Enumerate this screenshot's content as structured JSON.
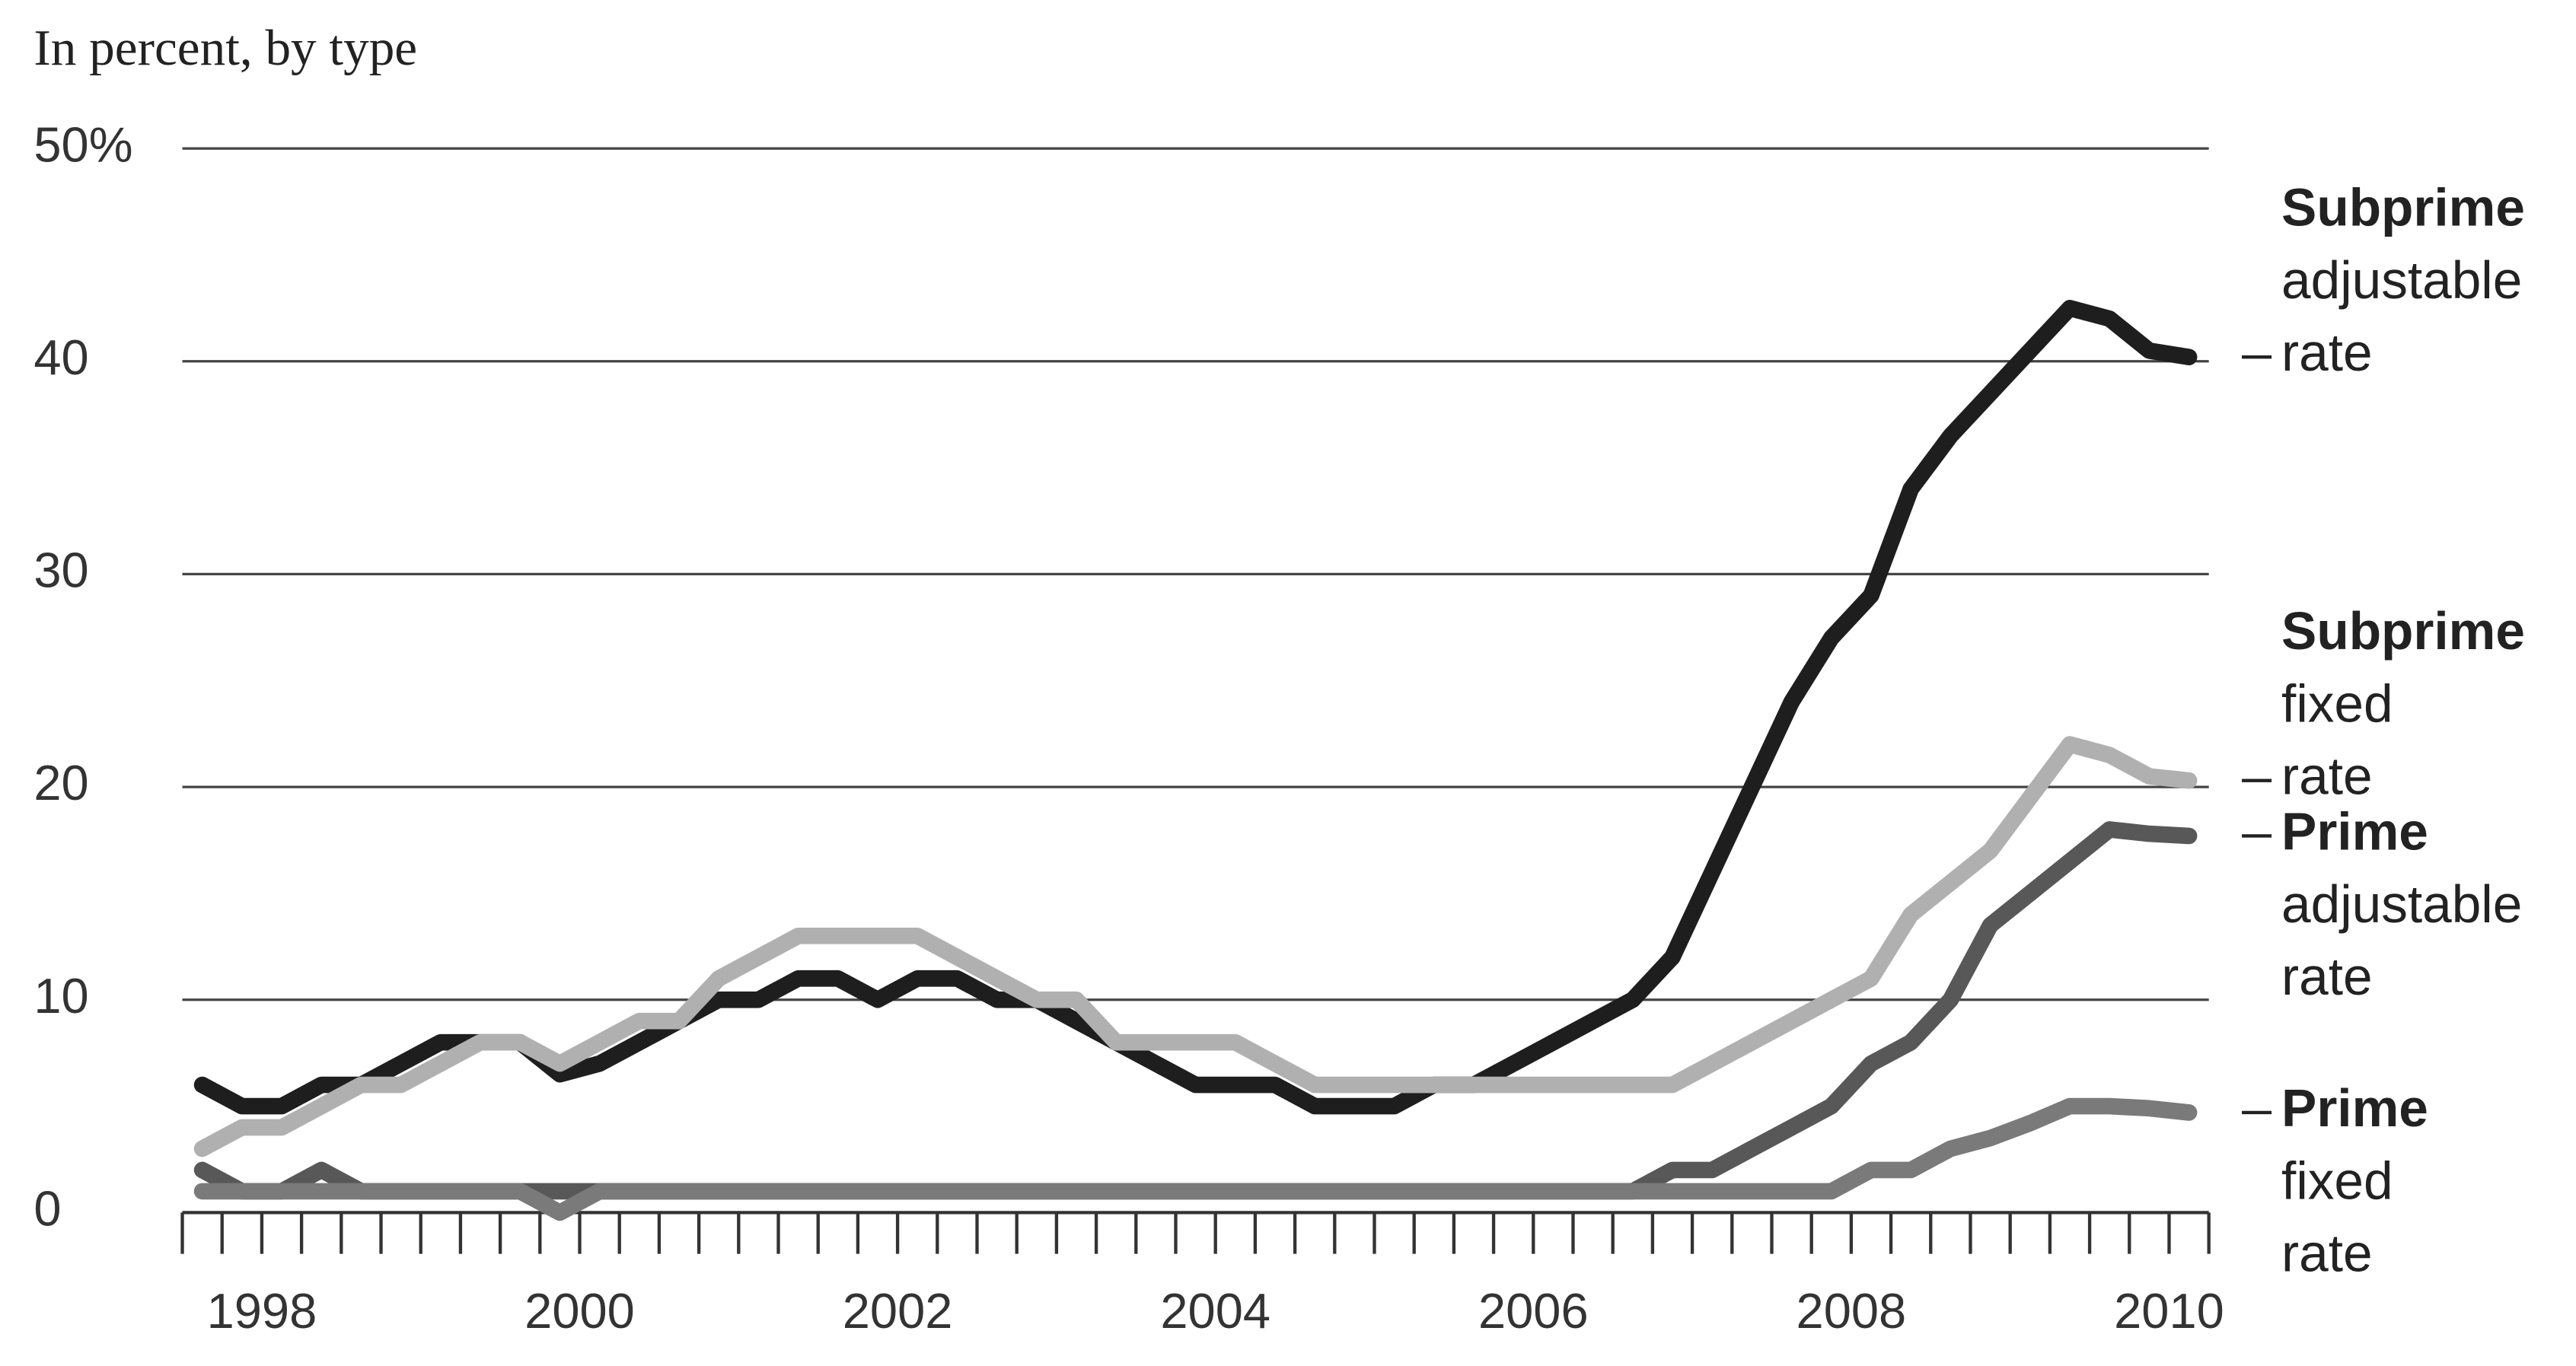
{
  "chart_data": {
    "type": "line",
    "subtitle": "In percent, by type",
    "xlim": [
      1998,
      2010.75
    ],
    "xticks": [
      {
        "value": 1998.5,
        "label": "1998"
      },
      {
        "value": 2000.5,
        "label": "2000"
      },
      {
        "value": 2002.5,
        "label": "2002"
      },
      {
        "value": 2004.5,
        "label": "2004"
      },
      {
        "value": 2006.5,
        "label": "2006"
      },
      {
        "value": 2008.5,
        "label": "2008"
      },
      {
        "value": 2010.5,
        "label": "2010"
      }
    ],
    "ylim": [
      0,
      50
    ],
    "yticks": [
      0,
      10,
      20,
      30,
      40,
      {
        "value": 50,
        "label": "50%"
      }
    ],
    "grid": true,
    "x": [
      1998.125,
      1998.375,
      1998.625,
      1998.875,
      1999.125,
      1999.375,
      1999.625,
      1999.875,
      2000.125,
      2000.375,
      2000.625,
      2000.875,
      2001.125,
      2001.375,
      2001.625,
      2001.875,
      2002.125,
      2002.375,
      2002.625,
      2002.875,
      2003.125,
      2003.375,
      2003.625,
      2003.875,
      2004.125,
      2004.375,
      2004.625,
      2004.875,
      2005.125,
      2005.375,
      2005.625,
      2005.875,
      2006.125,
      2006.375,
      2006.625,
      2006.875,
      2007.125,
      2007.375,
      2007.625,
      2007.875,
      2008.125,
      2008.375,
      2008.625,
      2008.875,
      2009.125,
      2009.375,
      2009.625,
      2009.875,
      2010.125,
      2010.375,
      2010.625
    ],
    "series": [
      {
        "name": "Subprime adjustable rate",
        "color": "#1e1e1e",
        "values": [
          6,
          5,
          5,
          6,
          6,
          7,
          8,
          8,
          8,
          6.5,
          7,
          8,
          9,
          10,
          10,
          11,
          11,
          10,
          11,
          11,
          10,
          10,
          9,
          8,
          7,
          6,
          6,
          6,
          5,
          5,
          5,
          6,
          6,
          7,
          8,
          9,
          10,
          12,
          16,
          20,
          24,
          27,
          29,
          34,
          36.5,
          38.5,
          40.5,
          42.5,
          42,
          40.5,
          40.2
        ]
      },
      {
        "name": "Subprime fixed rate",
        "color": "#b0b0b0",
        "values": [
          3,
          4,
          4,
          5,
          6,
          6,
          7,
          8,
          8,
          7,
          8,
          9,
          9,
          11,
          12,
          13,
          13,
          13,
          13,
          12,
          11,
          10,
          10,
          8,
          8,
          8,
          8,
          7,
          6,
          6,
          6,
          6,
          6,
          6,
          6,
          6,
          6,
          6,
          7,
          8,
          9,
          10,
          11,
          14,
          15.5,
          17,
          19.5,
          22,
          21.5,
          20.5,
          20.3
        ]
      },
      {
        "name": "Prime adjustable rate",
        "color": "#585858",
        "values": [
          2,
          1,
          1,
          2,
          1,
          1,
          1,
          1,
          1,
          1,
          1,
          1,
          1,
          1,
          1,
          1,
          1,
          1,
          1,
          1,
          1,
          1,
          1,
          1,
          1,
          1,
          1,
          1,
          1,
          1,
          1,
          1,
          1,
          1,
          1,
          1,
          1,
          2,
          2,
          3,
          4,
          5,
          7,
          8,
          10,
          13.5,
          15,
          16.5,
          18,
          17.8,
          17.7
        ]
      },
      {
        "name": "Prime fixed rate",
        "color": "#7a7a7a",
        "values": [
          1,
          1,
          1,
          1,
          1,
          1,
          1,
          1,
          1,
          0,
          1,
          1,
          1,
          1,
          1,
          1,
          1,
          1,
          1,
          1,
          1,
          1,
          1,
          1,
          1,
          1,
          1,
          1,
          1,
          1,
          1,
          1,
          1,
          1,
          1,
          1,
          1,
          1,
          1,
          1,
          1,
          1,
          2,
          2,
          3,
          3.5,
          4.2,
          5,
          5,
          4.9,
          4.7
        ]
      }
    ]
  }
}
